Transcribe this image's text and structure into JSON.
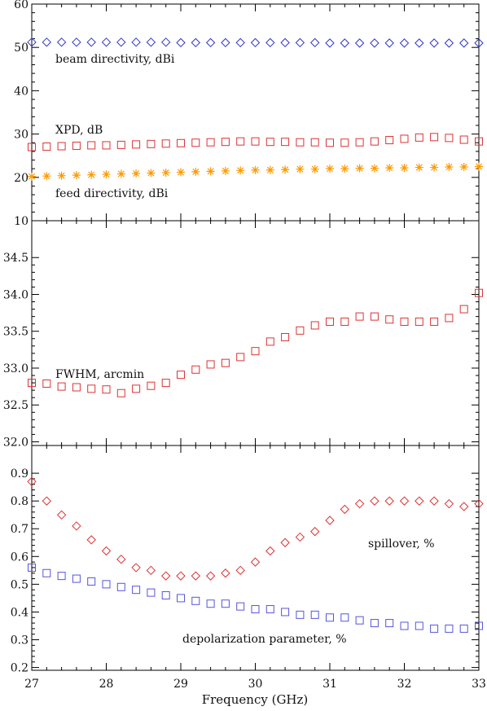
{
  "chart_data": [
    {
      "type": "scatter",
      "ylim": [
        10,
        60
      ],
      "yticks": [
        10,
        20,
        30,
        40,
        50,
        60
      ],
      "xlim": [
        27,
        33
      ],
      "x": [
        27.0,
        27.2,
        27.4,
        27.6,
        27.8,
        28.0,
        28.2,
        28.4,
        28.6,
        28.8,
        29.0,
        29.2,
        29.4,
        29.6,
        29.8,
        30.0,
        30.2,
        30.4,
        30.6,
        30.8,
        31.0,
        31.2,
        31.4,
        31.6,
        31.8,
        32.0,
        32.2,
        32.4,
        32.6,
        32.8,
        33.0
      ],
      "series": [
        {
          "name": "beam directivity, dBi",
          "marker": "diamond",
          "color": "#3333cc",
          "values": [
            51.2,
            51.2,
            51.2,
            51.2,
            51.2,
            51.2,
            51.2,
            51.2,
            51.2,
            51.2,
            51.1,
            51.1,
            51.1,
            51.1,
            51.1,
            51.1,
            51.1,
            51.1,
            51.1,
            51.1,
            51.0,
            51.0,
            51.0,
            51.0,
            51.0,
            51.0,
            51.0,
            51.0,
            51.0,
            51.0,
            51.0
          ]
        },
        {
          "name": "XPD, dB",
          "marker": "square",
          "color": "#dd3333",
          "x": [
            27.0,
            27.2,
            27.4,
            27.6,
            27.8,
            28.0,
            28.2,
            28.4,
            28.6,
            28.8,
            29.0,
            29.2,
            29.4,
            29.6,
            29.8,
            30.0,
            30.2,
            30.4,
            30.6,
            30.8,
            31.0,
            31.2,
            31.4,
            31.6,
            31.8,
            32.0,
            32.2,
            32.4,
            32.6,
            32.8,
            33.0
          ],
          "values": [
            27.0,
            27.1,
            27.2,
            27.3,
            27.4,
            27.4,
            27.5,
            27.6,
            27.7,
            27.8,
            27.9,
            28.0,
            28.1,
            28.2,
            28.3,
            28.3,
            28.2,
            28.2,
            28.1,
            28.1,
            28.0,
            28.0,
            28.1,
            28.3,
            28.6,
            28.9,
            29.2,
            29.3,
            29.1,
            28.7,
            28.3
          ]
        },
        {
          "name": "feed directivity, dBi",
          "marker": "asterisk",
          "color": "#ff9900",
          "values": [
            20.2,
            20.3,
            20.4,
            20.5,
            20.6,
            20.7,
            20.8,
            20.9,
            21.0,
            21.1,
            21.2,
            21.3,
            21.4,
            21.5,
            21.6,
            21.7,
            21.7,
            21.8,
            21.9,
            21.9,
            22.0,
            22.0,
            22.1,
            22.1,
            22.2,
            22.2,
            22.3,
            22.3,
            22.4,
            22.4,
            22.5
          ]
        }
      ]
    },
    {
      "type": "scatter",
      "ylim": [
        31.95,
        35.0
      ],
      "yticks": [
        32.0,
        32.5,
        33.0,
        33.5,
        34.0,
        34.5
      ],
      "yticklabels": [
        "32.0",
        "32.5",
        "33.0",
        "33.5",
        "34.0",
        "34.5"
      ],
      "xlim": [
        27,
        33
      ],
      "series": [
        {
          "name": "FWHM, arcmin",
          "marker": "square",
          "color": "#dd3333",
          "x": [
            27.0,
            27.2,
            27.4,
            27.6,
            27.8,
            28.0,
            28.2,
            28.4,
            28.6,
            28.8,
            29.0,
            29.2,
            29.4,
            29.6,
            29.8,
            30.0,
            30.2,
            30.4,
            30.6,
            30.8,
            31.0,
            31.2,
            31.4,
            31.6,
            31.8,
            32.0,
            32.2,
            32.4,
            32.6,
            32.8,
            33.0
          ],
          "values": [
            32.8,
            32.79,
            32.75,
            32.74,
            32.72,
            32.71,
            32.66,
            32.72,
            32.76,
            32.8,
            32.91,
            32.98,
            33.05,
            33.07,
            33.15,
            33.23,
            33.36,
            33.42,
            33.51,
            33.58,
            33.63,
            33.63,
            33.7,
            33.7,
            33.66,
            33.63,
            33.63,
            33.63,
            33.68,
            33.8,
            34.02
          ]
        }
      ]
    },
    {
      "type": "scatter",
      "ylim": [
        0.19,
        1.0
      ],
      "yticks": [
        0.2,
        0.3,
        0.4,
        0.5,
        0.6,
        0.7,
        0.8,
        0.9
      ],
      "yticklabels": [
        "0.2",
        "0.3",
        "0.4",
        "0.5",
        "0.6",
        "0.7",
        "0.8",
        "0.9"
      ],
      "xlim": [
        27,
        33
      ],
      "xticks": [
        27,
        28,
        29,
        30,
        31,
        32,
        33
      ],
      "xlabel": "Frequency (GHz)",
      "series": [
        {
          "name": "spillover, %",
          "marker": "diamond",
          "color": "#dd3333",
          "x": [
            27.0,
            27.2,
            27.4,
            27.6,
            27.8,
            28.0,
            28.2,
            28.4,
            28.6,
            28.8,
            29.0,
            29.2,
            29.4,
            29.6,
            29.8,
            30.0,
            30.2,
            30.4,
            30.6,
            30.8,
            31.0,
            31.2,
            31.4,
            31.6,
            31.8,
            32.0,
            32.2,
            32.4,
            32.6,
            32.8,
            33.0
          ],
          "values": [
            0.87,
            0.8,
            0.75,
            0.71,
            0.66,
            0.62,
            0.59,
            0.56,
            0.55,
            0.53,
            0.53,
            0.53,
            0.53,
            0.54,
            0.55,
            0.58,
            0.62,
            0.65,
            0.67,
            0.69,
            0.73,
            0.77,
            0.79,
            0.8,
            0.8,
            0.8,
            0.8,
            0.8,
            0.79,
            0.78,
            0.79
          ]
        },
        {
          "name": "depolarization parameter, %",
          "marker": "square",
          "color": "#5555dd",
          "x": [
            27.0,
            27.2,
            27.4,
            27.6,
            27.8,
            28.0,
            28.2,
            28.4,
            28.6,
            28.8,
            29.0,
            29.2,
            29.4,
            29.6,
            29.8,
            30.0,
            30.2,
            30.4,
            30.6,
            30.8,
            31.0,
            31.2,
            31.4,
            31.6,
            31.8,
            32.0,
            32.2,
            32.4,
            32.6,
            32.8,
            33.0
          ],
          "values": [
            0.56,
            0.54,
            0.53,
            0.52,
            0.51,
            0.5,
            0.49,
            0.48,
            0.47,
            0.46,
            0.45,
            0.44,
            0.43,
            0.43,
            0.42,
            0.41,
            0.41,
            0.4,
            0.39,
            0.39,
            0.38,
            0.38,
            0.37,
            0.36,
            0.36,
            0.35,
            0.35,
            0.34,
            0.34,
            0.34,
            0.35
          ]
        }
      ]
    }
  ]
}
